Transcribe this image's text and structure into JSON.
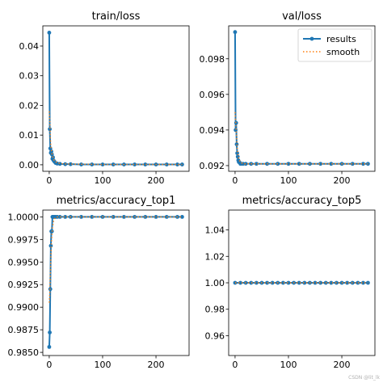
{
  "colors": {
    "results": "#1f77b4",
    "smooth": "#ff7f0e"
  },
  "watermark": "CSDN @lit_lk",
  "chart_data": [
    {
      "type": "line",
      "title": "train/loss",
      "xlabel": "",
      "ylabel": "",
      "xlim": [
        -12,
        262
      ],
      "ylim": [
        -0.0022,
        0.0468
      ],
      "xticks": [
        0,
        100,
        200
      ],
      "xtick_labels": [
        "0",
        "100",
        "200"
      ],
      "yticks": [
        0.0,
        0.01,
        0.02,
        0.03,
        0.04
      ],
      "ytick_labels": [
        "0.00",
        "0.01",
        "0.02",
        "0.03",
        "0.04"
      ],
      "grid": false,
      "legend": null,
      "series": [
        {
          "name": "results",
          "x": [
            0,
            1,
            2,
            3,
            4,
            5,
            6,
            7,
            8,
            10,
            12,
            15,
            20,
            30,
            40,
            60,
            80,
            100,
            120,
            140,
            160,
            180,
            200,
            220,
            240,
            249
          ],
          "y": [
            0.0445,
            0.012,
            0.0055,
            0.004,
            0.0045,
            0.0035,
            0.002,
            0.0025,
            0.0015,
            0.001,
            0.0006,
            0.0004,
            0.0003,
            0.0002,
            0.0002,
            0.0001,
            0.0001,
            0.0001,
            0.0001,
            0.0001,
            0.0001,
            0.0001,
            0.0001,
            0.0001,
            0.0001,
            0.0001
          ]
        },
        {
          "name": "smooth",
          "x": [
            0,
            1,
            2,
            3,
            4,
            5,
            6,
            8,
            10,
            15,
            20,
            30,
            50,
            100,
            150,
            200,
            249
          ],
          "y": [
            0.018,
            0.015,
            0.0095,
            0.0065,
            0.005,
            0.004,
            0.003,
            0.002,
            0.0012,
            0.0007,
            0.0004,
            0.0003,
            0.0002,
            0.0001,
            0.0001,
            0.0001,
            0.0001
          ]
        }
      ]
    },
    {
      "type": "line",
      "title": "val/loss",
      "xlabel": "",
      "ylabel": "",
      "xlim": [
        -12,
        262
      ],
      "ylim": [
        0.09168,
        0.09985
      ],
      "xticks": [
        0,
        100,
        200
      ],
      "xtick_labels": [
        "0",
        "100",
        "200"
      ],
      "yticks": [
        0.092,
        0.094,
        0.096,
        0.098
      ],
      "ytick_labels": [
        "0.092",
        "0.094",
        "0.096",
        "0.098"
      ],
      "grid": false,
      "legend": {
        "placement": "top-right",
        "entries": [
          "results",
          "smooth"
        ]
      },
      "series": [
        {
          "name": "results",
          "x": [
            0,
            1,
            2,
            3,
            4,
            5,
            6,
            7,
            8,
            10,
            12,
            15,
            20,
            30,
            40,
            60,
            80,
            100,
            120,
            140,
            160,
            180,
            200,
            220,
            240,
            249
          ],
          "y": [
            0.0995,
            0.094,
            0.0944,
            0.0932,
            0.0927,
            0.0925,
            0.0923,
            0.0922,
            0.0922,
            0.0921,
            0.0921,
            0.0921,
            0.0921,
            0.0921,
            0.0921,
            0.0921,
            0.0921,
            0.0921,
            0.0921,
            0.0921,
            0.0921,
            0.0921,
            0.0921,
            0.0921,
            0.0921,
            0.0921
          ]
        },
        {
          "name": "smooth",
          "x": [
            0,
            1,
            2,
            3,
            4,
            5,
            6,
            8,
            10,
            15,
            20,
            30,
            50,
            100,
            150,
            200,
            249
          ],
          "y": [
            0.095,
            0.0945,
            0.094,
            0.0935,
            0.093,
            0.0927,
            0.0925,
            0.0923,
            0.0922,
            0.0921,
            0.0921,
            0.0921,
            0.0921,
            0.0921,
            0.0921,
            0.0921,
            0.0921
          ]
        }
      ]
    },
    {
      "type": "line",
      "title": "metrics/accuracy_top1",
      "xlabel": "",
      "ylabel": "",
      "xlim": [
        -12,
        262
      ],
      "ylim": [
        0.98465,
        1.00075
      ],
      "xticks": [
        0,
        100,
        200
      ],
      "xtick_labels": [
        "0",
        "100",
        "200"
      ],
      "yticks": [
        0.985,
        0.9875,
        0.99,
        0.9925,
        0.995,
        0.9975,
        1.0
      ],
      "ytick_labels": [
        "0.9850",
        "0.9875",
        "0.9900",
        "0.9925",
        "0.9950",
        "0.9975",
        "1.0000"
      ],
      "grid": false,
      "legend": null,
      "series": [
        {
          "name": "results",
          "x": [
            0,
            1,
            2,
            3,
            4,
            5,
            6,
            7,
            8,
            10,
            12,
            15,
            20,
            30,
            40,
            60,
            80,
            100,
            120,
            140,
            160,
            180,
            200,
            220,
            240,
            249
          ],
          "y": [
            0.9856,
            0.9872,
            0.992,
            0.9968,
            0.9984,
            0.9984,
            1.0,
            1.0,
            1.0,
            1.0,
            1.0,
            1.0,
            1.0,
            1.0,
            1.0,
            1.0,
            1.0,
            1.0,
            1.0,
            1.0,
            1.0,
            1.0,
            1.0,
            1.0,
            1.0,
            1.0
          ]
        },
        {
          "name": "smooth",
          "x": [
            0,
            1,
            2,
            3,
            4,
            5,
            6,
            8,
            10,
            15,
            20,
            30,
            50,
            100,
            150,
            200,
            249
          ],
          "y": [
            0.9905,
            0.9915,
            0.9935,
            0.9955,
            0.997,
            0.998,
            0.9988,
            0.9995,
            0.9998,
            1.0,
            1.0,
            1.0,
            1.0,
            1.0,
            1.0,
            1.0,
            1.0
          ]
        }
      ]
    },
    {
      "type": "line",
      "title": "metrics/accuracy_top5",
      "xlabel": "",
      "ylabel": "",
      "xlim": [
        -12,
        262
      ],
      "ylim": [
        0.945,
        1.055
      ],
      "xticks": [
        0,
        100,
        200
      ],
      "xtick_labels": [
        "0",
        "100",
        "200"
      ],
      "yticks": [
        0.96,
        0.98,
        1.0,
        1.02,
        1.04
      ],
      "ytick_labels": [
        "0.96",
        "0.98",
        "1.00",
        "1.02",
        "1.04"
      ],
      "grid": false,
      "legend": null,
      "series": [
        {
          "name": "results",
          "x": [
            0,
            10,
            20,
            30,
            40,
            50,
            60,
            70,
            80,
            90,
            100,
            110,
            120,
            130,
            140,
            150,
            160,
            170,
            180,
            190,
            200,
            210,
            220,
            230,
            240,
            249
          ],
          "y": [
            1.0,
            1.0,
            1.0,
            1.0,
            1.0,
            1.0,
            1.0,
            1.0,
            1.0,
            1.0,
            1.0,
            1.0,
            1.0,
            1.0,
            1.0,
            1.0,
            1.0,
            1.0,
            1.0,
            1.0,
            1.0,
            1.0,
            1.0,
            1.0,
            1.0,
            1.0
          ]
        },
        {
          "name": "smooth",
          "x": [
            0,
            249
          ],
          "y": [
            1.0,
            1.0
          ]
        }
      ]
    }
  ]
}
